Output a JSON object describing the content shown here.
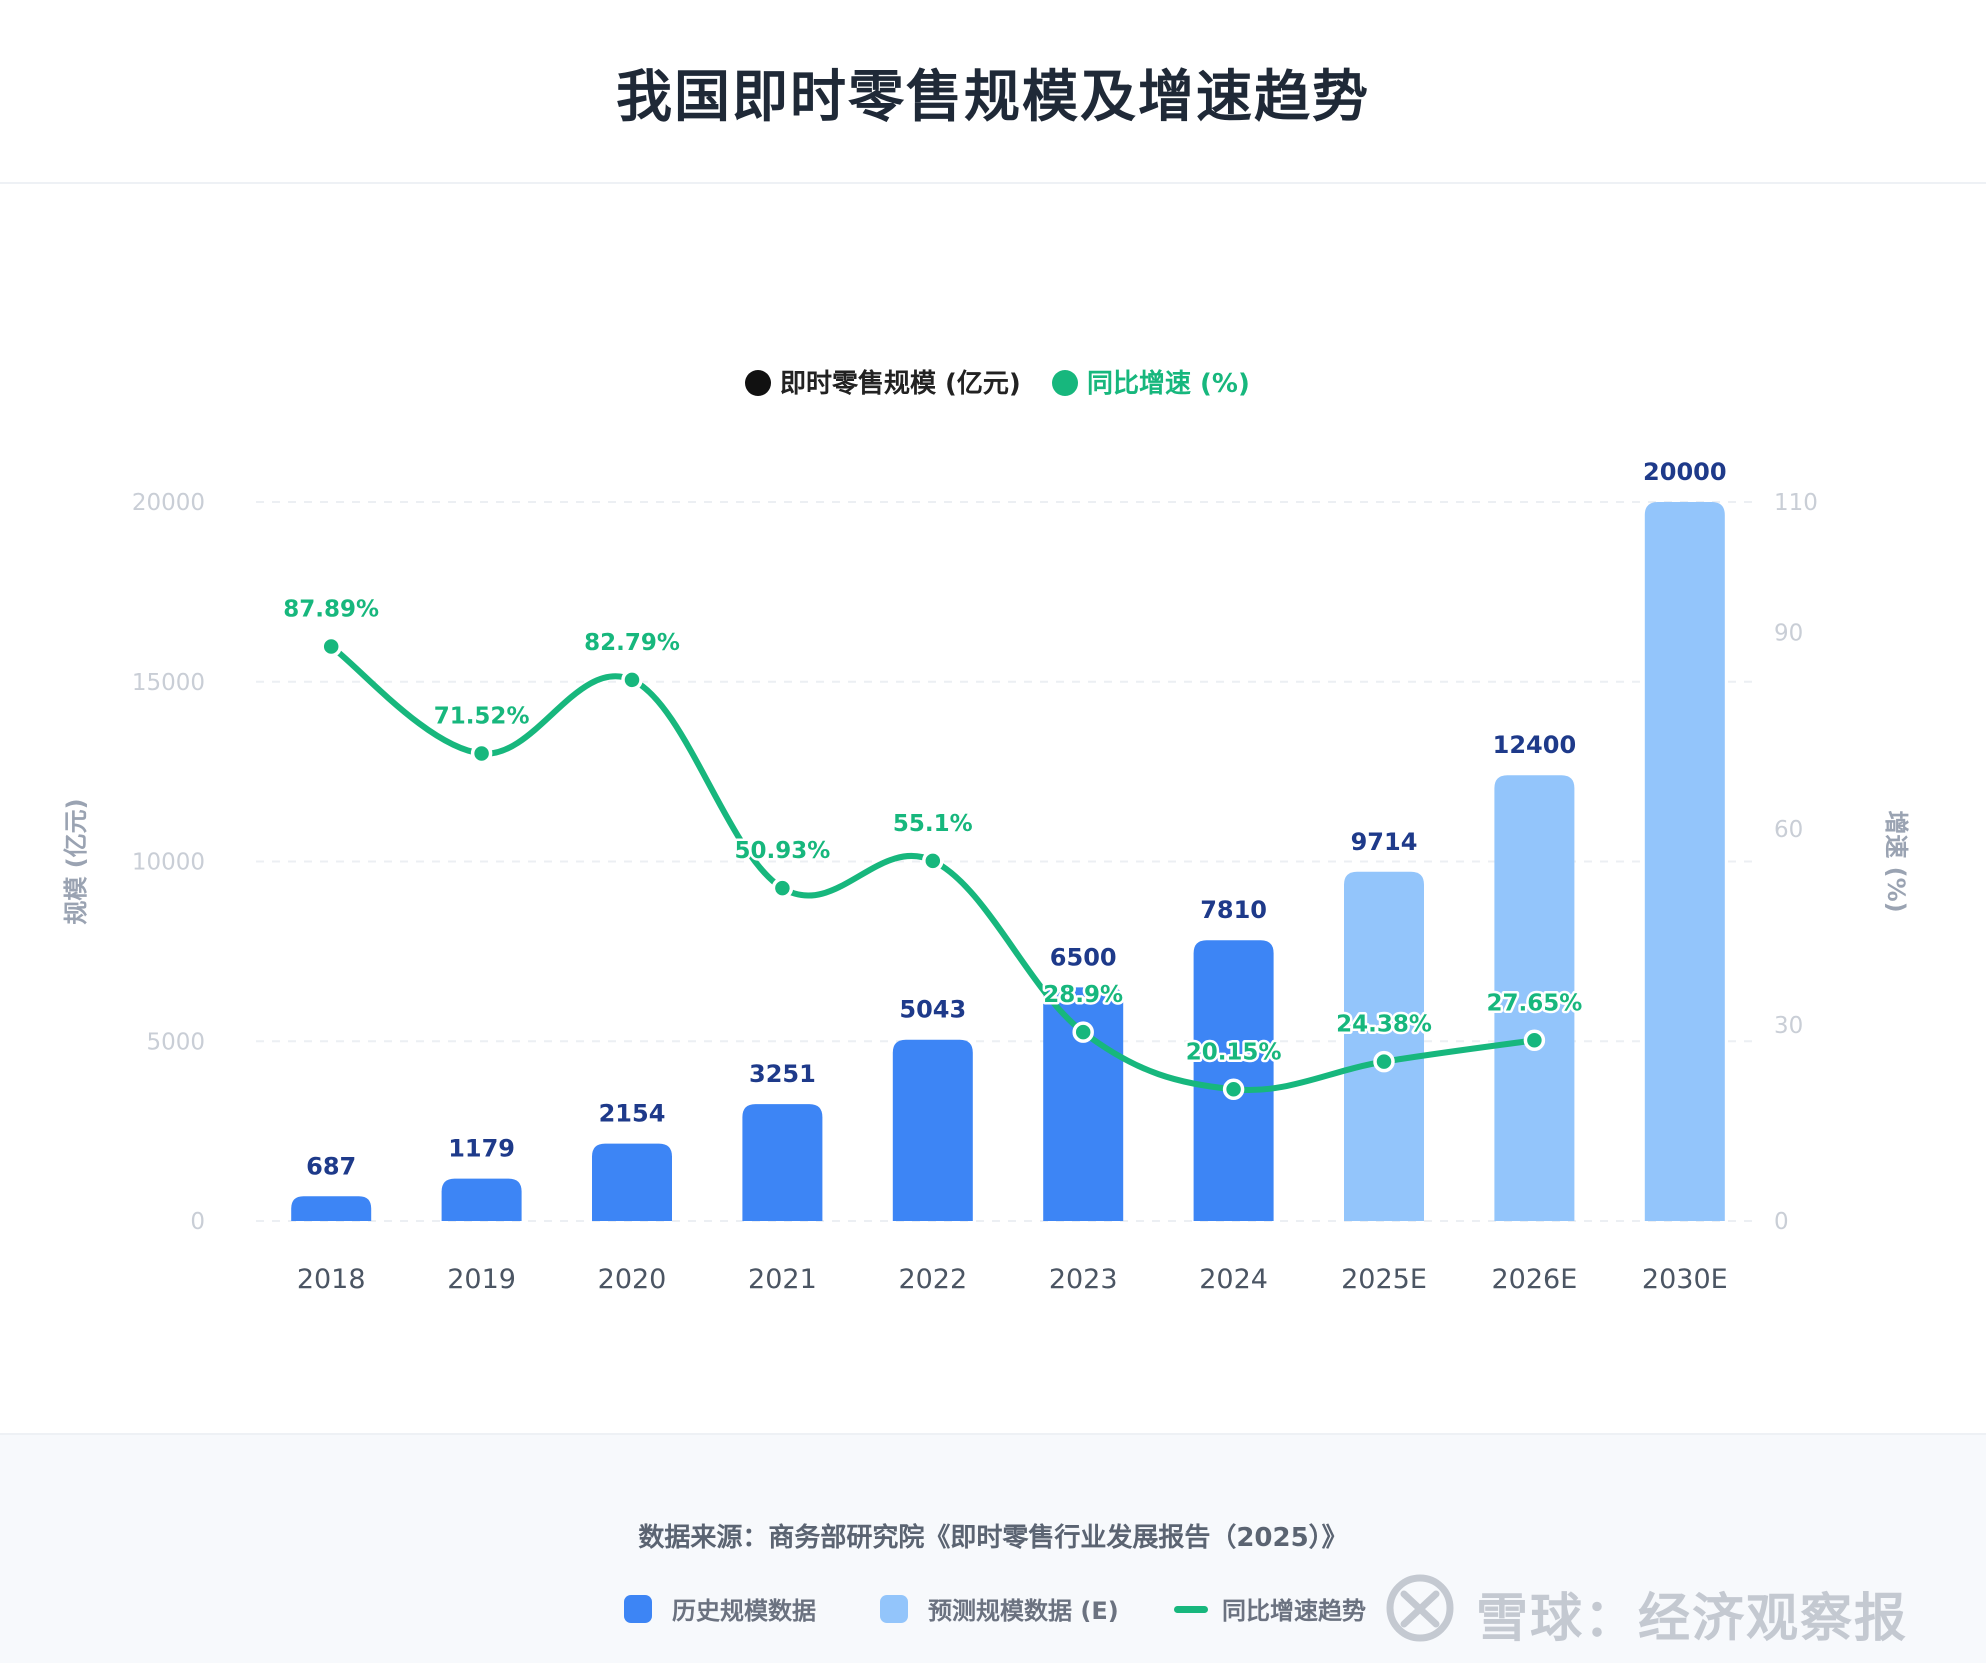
{
  "title": "我国即时零售规模及增速趋势",
  "colors": {
    "history_bar": "#3d85f5",
    "forecast_bar": "#93c5fb",
    "growth_line": "#17b77d",
    "bar_label": "#1e3a8a",
    "axis_text": "#c9ced6",
    "axis_title": "#9aa3b2",
    "x_tick": "#4b5563"
  },
  "legend_top": [
    {
      "label": "即时零售规模 (亿元)",
      "color": "#111111"
    },
    {
      "label": "同比增速 (%)",
      "color": "#17b77d"
    }
  ],
  "chart_data": {
    "type": "bar",
    "title": "我国即时零售规模及增速趋势",
    "categories": [
      "2018",
      "2019",
      "2020",
      "2021",
      "2022",
      "2023",
      "2024",
      "2025E",
      "2026E",
      "2030E"
    ],
    "series": [
      {
        "name": "即时零售规模 (亿元)",
        "type": "bar",
        "axis": "left",
        "values": [
          687,
          1179,
          2154,
          3251,
          5043,
          6500,
          7810,
          9714,
          12400,
          20000
        ],
        "forecast": [
          false,
          false,
          false,
          false,
          false,
          false,
          false,
          true,
          true,
          true
        ]
      },
      {
        "name": "同比增速 (%)",
        "type": "line",
        "axis": "right",
        "values": [
          87.89,
          71.52,
          82.79,
          50.93,
          55.1,
          28.9,
          20.15,
          24.38,
          27.65,
          null
        ],
        "labels": [
          "87.89%",
          "71.52%",
          "82.79%",
          "50.93%",
          "55.1%",
          "28.9%",
          "20.15%",
          "24.38%",
          "27.65%",
          ""
        ]
      }
    ],
    "ylabel": "规模 (亿元)",
    "y2label": "增速 (%)",
    "ylim": [
      0,
      20000
    ],
    "yticks": [
      0,
      5000,
      10000,
      15000,
      20000
    ],
    "y2lim": [
      0,
      110
    ],
    "y2ticks": [
      0,
      30,
      60,
      90,
      110
    ],
    "grid": "horizontal-dashed",
    "legend_position": "top"
  },
  "footer": {
    "source": "数据来源：商务部研究院《即时零售行业发展报告（2025）》",
    "legend": [
      {
        "label": "历史规模数据",
        "kind": "bar",
        "color": "#3d85f5"
      },
      {
        "label": "预测规模数据 (E)",
        "kind": "bar",
        "color": "#93c5fb"
      },
      {
        "label": "同比增速趋势",
        "kind": "line",
        "color": "#17b77d"
      }
    ],
    "watermark": "雪球：经济观察报"
  }
}
